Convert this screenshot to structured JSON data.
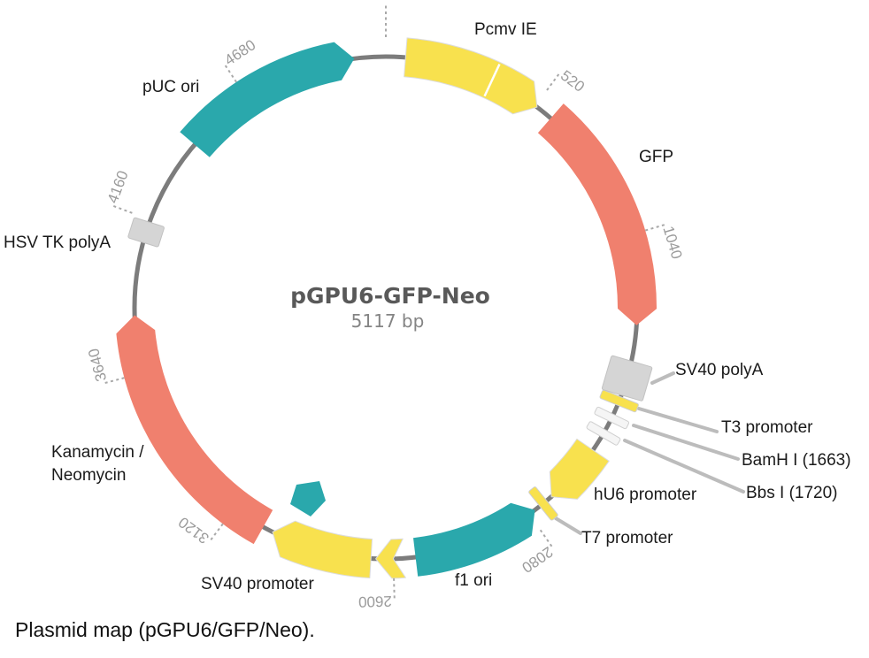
{
  "figure": {
    "title": "pGPU6-GFP-Neo",
    "size_label": "5117 bp",
    "caption": "Plasmid map (pGPU6/GFP/Neo)."
  },
  "colors": {
    "teal": "#2aa8ac",
    "salmon": "#f0806e",
    "yellow": "#f8e14e",
    "gray_box": "#d5d5d5",
    "white_band": "#f5f5f5",
    "backbone": "#7c7c7c",
    "tick": "#a9a9a9",
    "tick_text": "#9b9b9b",
    "leader": "#bcbcbc",
    "title_text": "#595959",
    "subtitle_text": "#848484",
    "label_text": "#1a1a1a"
  },
  "plasmid": {
    "length_bp": 5117,
    "features": [
      {
        "label": "Pcmv IE",
        "color": "yellow",
        "a1": 4.5,
        "a2": 37,
        "arrow": "end",
        "divider": 25
      },
      {
        "label": "GFP",
        "color": "salmon",
        "a1": 41,
        "a2": 94,
        "arrow": "end"
      },
      {
        "label": "SV40 polyA",
        "color": "gray_box",
        "type": "box",
        "mid": 106.3,
        "tan": 40,
        "rad": 48
      },
      {
        "label": "T3 promoter",
        "color": "yellow",
        "type": "band",
        "mid": 111.8,
        "tan": 10,
        "rad": 44
      },
      {
        "label": "BamH I (1663)",
        "color": "white_band",
        "type": "band",
        "mid": 116,
        "tan": 9,
        "rad": 40
      },
      {
        "label": "Bbs I (1720)",
        "color": "white_band",
        "type": "band",
        "mid": 120,
        "tan": 9,
        "rad": 40
      },
      {
        "label": "hU6 promoter",
        "color": "yellow",
        "a1": 124.5,
        "a2": 138.8,
        "arrow": "end"
      },
      {
        "label": "T7 promoter",
        "color": "yellow",
        "type": "band",
        "mid": 141.2,
        "tan": 10,
        "rad": 42
      },
      {
        "label": "f1 ori",
        "color": "teal",
        "a1": 143.6,
        "a2": 173.2,
        "arrow": "start"
      },
      {
        "label": "",
        "color": "yellow",
        "a1": 175.8,
        "a2": 182.3,
        "arrow": "end",
        "notch": true
      },
      {
        "label": "SV40 promoter",
        "color": "yellow",
        "a1": 183.4,
        "a2": 206.8,
        "arrow": "end"
      },
      {
        "label": "Kanamycin /\nNeomycin",
        "color": "salmon",
        "a1": 209.2,
        "a2": 268.3,
        "arrow": "end"
      },
      {
        "label": "HSV TK polyA",
        "color": "gray_box",
        "type": "box",
        "mid": 287.5,
        "tan": 24,
        "rad": 36
      },
      {
        "label": "pUC ori",
        "color": "teal",
        "a1": 310.5,
        "a2": 352.8,
        "arrow": "end"
      }
    ],
    "ticks": [
      {
        "label": "",
        "deg": 0
      },
      {
        "label": "520",
        "deg": 36.5
      },
      {
        "label": "1040",
        "deg": 73.4
      },
      {
        "label": "2080",
        "deg": 145.2
      },
      {
        "label": "2600",
        "deg": 178.3
      },
      {
        "label": "3120",
        "deg": 217
      },
      {
        "label": "3640",
        "deg": 255
      },
      {
        "label": "4160",
        "deg": 290.5
      },
      {
        "label": "4680",
        "deg": 326.5
      }
    ]
  }
}
